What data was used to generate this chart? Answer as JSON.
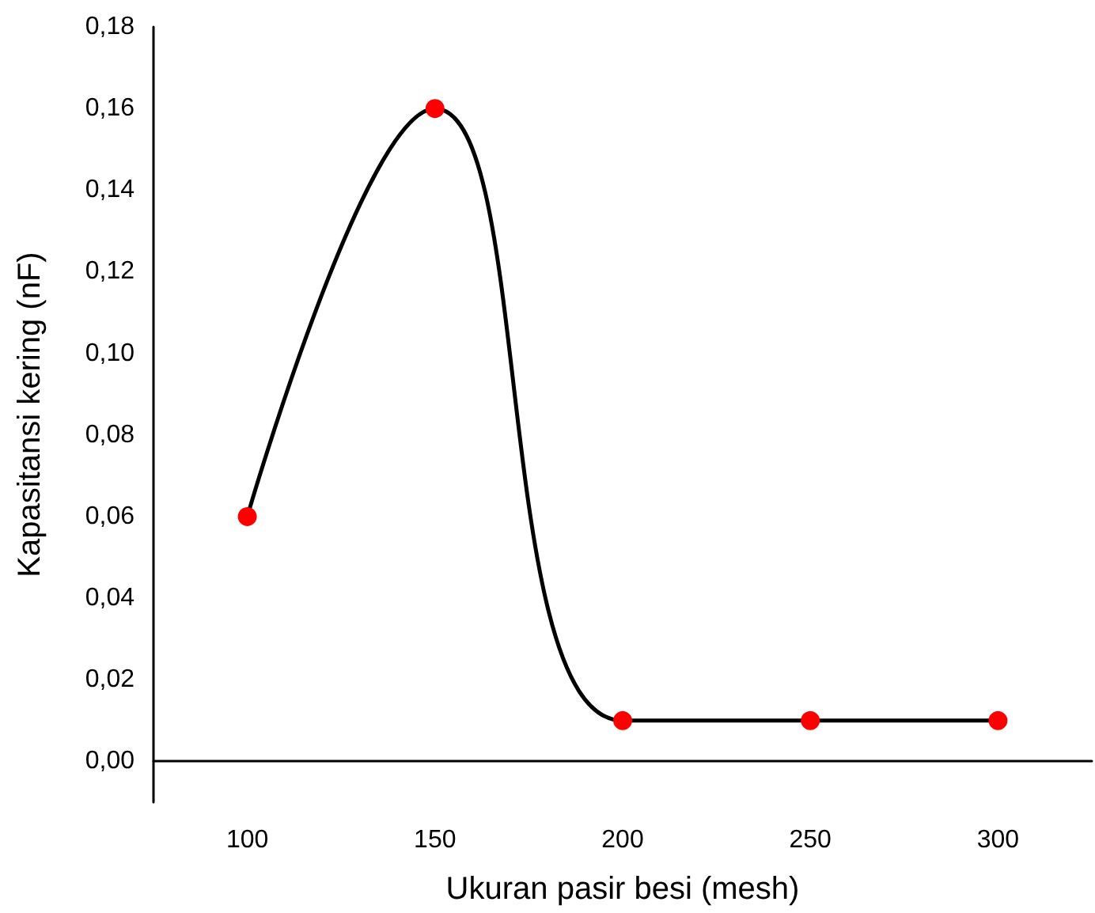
{
  "chart_data": {
    "type": "line",
    "xlabel": "Ukuran pasir besi (mesh)",
    "ylabel": "Kapasitansi kering (nF)",
    "categories": [
      "100",
      "150",
      "200",
      "250",
      "300"
    ],
    "series": [
      {
        "color": "#000000",
        "colors": [
          "#ff0000",
          "#ff0000",
          "#ff0000",
          "#ff0000",
          "#ff0000"
        ],
        "values": [
          0.06,
          0.16,
          0.01,
          0.01,
          0.01
        ]
      }
    ],
    "ylim": [
      -0.01,
      0.18
    ],
    "yticks": [
      {
        "value": 0,
        "label": "0,00"
      },
      {
        "value": 0.02,
        "label": "0,02"
      },
      {
        "value": 0.04,
        "label": "0,04"
      },
      {
        "value": 0.06,
        "label": "0,06"
      },
      {
        "value": 0.08,
        "label": "0,08"
      },
      {
        "value": 0.1,
        "label": "0,10"
      },
      {
        "value": 0.12,
        "label": "0,12"
      },
      {
        "value": 0.14,
        "label": "0,14"
      },
      {
        "value": 0.16,
        "label": "0,16"
      },
      {
        "value": 0.18,
        "label": "0,18"
      }
    ],
    "grid": false,
    "marker": "circle",
    "line_style": "solid"
  }
}
